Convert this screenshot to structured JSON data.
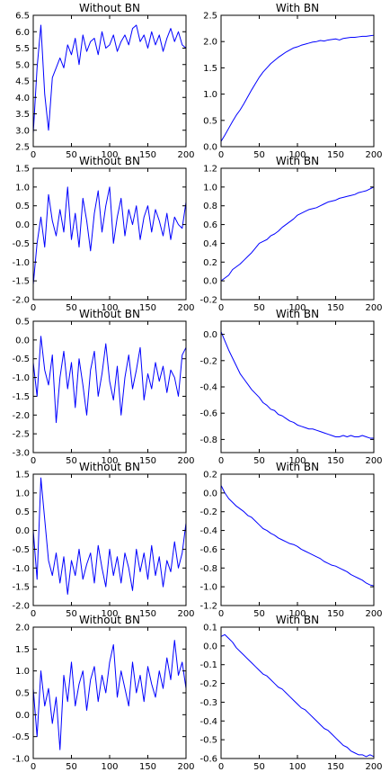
{
  "figure": {
    "title": ""
  },
  "chart_data": [
    {
      "type": "line",
      "title": "Without BN",
      "xlabel": "",
      "ylabel": "",
      "xlim": [
        0,
        200
      ],
      "ylim": [
        2.5,
        6.5
      ],
      "xticks": [
        "0",
        "50",
        "100",
        "150",
        "200"
      ],
      "yticks": [
        "2.5",
        "3.0",
        "3.5",
        "4.0",
        "4.5",
        "5.0",
        "5.5",
        "6.0",
        "6.5"
      ],
      "x": [
        0,
        5,
        10,
        15,
        20,
        25,
        30,
        35,
        40,
        45,
        50,
        55,
        60,
        65,
        70,
        75,
        80,
        85,
        90,
        95,
        100,
        105,
        110,
        115,
        120,
        125,
        130,
        135,
        140,
        145,
        150,
        155,
        160,
        165,
        170,
        175,
        180,
        185,
        190,
        195,
        200
      ],
      "series": [
        {
          "values": [
            2.9,
            4.9,
            6.2,
            4.1,
            3.0,
            4.6,
            4.9,
            5.2,
            4.9,
            5.6,
            5.3,
            5.8,
            5.0,
            5.9,
            5.4,
            5.7,
            5.8,
            5.3,
            6.0,
            5.5,
            5.6,
            5.9,
            5.4,
            5.7,
            5.9,
            5.6,
            6.1,
            6.2,
            5.7,
            5.9,
            5.5,
            6.0,
            5.6,
            5.9,
            5.4,
            5.8,
            6.1,
            5.7,
            6.0,
            5.6,
            5.5
          ]
        }
      ],
      "grid": false,
      "legend": false
    },
    {
      "type": "line",
      "title": "With BN",
      "xlabel": "",
      "ylabel": "",
      "xlim": [
        0,
        200
      ],
      "ylim": [
        0.0,
        2.5
      ],
      "xticks": [
        "0",
        "50",
        "100",
        "150",
        "200"
      ],
      "yticks": [
        "0.0",
        "0.5",
        "1.0",
        "1.5",
        "2.0",
        "2.5"
      ],
      "x": [
        0,
        5,
        10,
        15,
        20,
        25,
        30,
        35,
        40,
        45,
        50,
        55,
        60,
        65,
        70,
        75,
        80,
        85,
        90,
        95,
        100,
        105,
        110,
        115,
        120,
        125,
        130,
        135,
        140,
        145,
        150,
        155,
        160,
        165,
        170,
        175,
        180,
        185,
        190,
        195,
        200
      ],
      "series": [
        {
          "values": [
            0.1,
            0.22,
            0.35,
            0.48,
            0.6,
            0.7,
            0.82,
            0.95,
            1.08,
            1.2,
            1.32,
            1.42,
            1.5,
            1.58,
            1.64,
            1.7,
            1.75,
            1.8,
            1.84,
            1.88,
            1.9,
            1.93,
            1.95,
            1.97,
            1.99,
            2.0,
            2.02,
            2.01,
            2.03,
            2.04,
            2.05,
            2.03,
            2.06,
            2.07,
            2.08,
            2.08,
            2.09,
            2.1,
            2.1,
            2.11,
            2.12
          ]
        }
      ],
      "grid": false,
      "legend": false
    },
    {
      "type": "line",
      "title": "Without BN",
      "xlabel": "",
      "ylabel": "",
      "xlim": [
        0,
        200
      ],
      "ylim": [
        -2.0,
        1.5
      ],
      "xticks": [
        "0",
        "50",
        "100",
        "150",
        "200"
      ],
      "yticks": [
        "-2.0",
        "-1.5",
        "-1.0",
        "-0.5",
        "0.0",
        "0.5",
        "1.0",
        "1.5"
      ],
      "x": [
        0,
        5,
        10,
        15,
        20,
        25,
        30,
        35,
        40,
        45,
        50,
        55,
        60,
        65,
        70,
        75,
        80,
        85,
        90,
        95,
        100,
        105,
        110,
        115,
        120,
        125,
        130,
        135,
        140,
        145,
        150,
        155,
        160,
        165,
        170,
        175,
        180,
        185,
        190,
        195,
        200
      ],
      "series": [
        {
          "values": [
            -1.6,
            -0.5,
            0.2,
            -0.6,
            0.8,
            0.1,
            -0.3,
            0.4,
            -0.2,
            1.0,
            -0.4,
            0.3,
            -0.6,
            0.7,
            0.1,
            -0.7,
            0.3,
            0.9,
            -0.2,
            0.5,
            1.0,
            -0.5,
            0.2,
            0.7,
            -0.3,
            0.4,
            0.0,
            0.5,
            -0.4,
            0.2,
            0.5,
            -0.2,
            0.4,
            0.1,
            -0.3,
            0.3,
            -0.4,
            0.2,
            0.0,
            -0.1,
            0.6
          ]
        }
      ],
      "grid": false,
      "legend": false
    },
    {
      "type": "line",
      "title": "With BN",
      "xlabel": "",
      "ylabel": "",
      "xlim": [
        0,
        200
      ],
      "ylim": [
        -0.2,
        1.2
      ],
      "xticks": [
        "0",
        "50",
        "100",
        "150",
        "200"
      ],
      "yticks": [
        "-0.2",
        "0.0",
        "0.2",
        "0.4",
        "0.6",
        "0.8",
        "1.0",
        "1.2"
      ],
      "x": [
        0,
        5,
        10,
        15,
        20,
        25,
        30,
        35,
        40,
        45,
        50,
        55,
        60,
        65,
        70,
        75,
        80,
        85,
        90,
        95,
        100,
        105,
        110,
        115,
        120,
        125,
        130,
        135,
        140,
        145,
        150,
        155,
        160,
        165,
        170,
        175,
        180,
        185,
        190,
        195,
        200
      ],
      "series": [
        {
          "values": [
            0.0,
            0.03,
            0.06,
            0.12,
            0.15,
            0.18,
            0.22,
            0.26,
            0.3,
            0.35,
            0.4,
            0.42,
            0.44,
            0.48,
            0.5,
            0.53,
            0.57,
            0.6,
            0.63,
            0.66,
            0.7,
            0.72,
            0.74,
            0.76,
            0.77,
            0.78,
            0.8,
            0.82,
            0.84,
            0.85,
            0.86,
            0.88,
            0.89,
            0.9,
            0.91,
            0.92,
            0.94,
            0.95,
            0.96,
            0.98,
            1.0
          ]
        }
      ],
      "grid": false,
      "legend": false
    },
    {
      "type": "line",
      "title": "Without BN",
      "xlabel": "",
      "ylabel": "",
      "xlim": [
        0,
        200
      ],
      "ylim": [
        -3.0,
        0.5
      ],
      "xticks": [
        "0",
        "50",
        "100",
        "150",
        "200"
      ],
      "yticks": [
        "-3.0",
        "-2.5",
        "-2.0",
        "-1.5",
        "-1.0",
        "-0.5",
        "0.0",
        "0.5"
      ],
      "x": [
        0,
        5,
        10,
        15,
        20,
        25,
        30,
        35,
        40,
        45,
        50,
        55,
        60,
        65,
        70,
        75,
        80,
        85,
        90,
        95,
        100,
        105,
        110,
        115,
        120,
        125,
        130,
        135,
        140,
        145,
        150,
        155,
        160,
        165,
        170,
        175,
        180,
        185,
        190,
        195,
        200
      ],
      "series": [
        {
          "values": [
            -0.6,
            -1.5,
            0.1,
            -0.8,
            -1.2,
            -0.4,
            -2.2,
            -1.0,
            -0.3,
            -1.3,
            -0.6,
            -1.8,
            -0.5,
            -1.2,
            -2.0,
            -0.8,
            -0.3,
            -1.5,
            -0.9,
            -0.1,
            -1.1,
            -1.6,
            -0.7,
            -2.0,
            -1.0,
            -0.4,
            -1.3,
            -0.8,
            -0.2,
            -1.6,
            -0.9,
            -1.3,
            -0.6,
            -1.1,
            -0.7,
            -1.4,
            -0.8,
            -1.0,
            -1.5,
            -0.4,
            -0.2
          ]
        }
      ],
      "grid": false,
      "legend": false
    },
    {
      "type": "line",
      "title": "With BN",
      "xlabel": "",
      "ylabel": "",
      "xlim": [
        0,
        200
      ],
      "ylim": [
        -0.9,
        0.1
      ],
      "xticks": [
        "0",
        "50",
        "100",
        "150",
        "200"
      ],
      "yticks": [
        "-0.8",
        "-0.6",
        "-0.4",
        "-0.2",
        "0.0"
      ],
      "x": [
        0,
        5,
        10,
        15,
        20,
        25,
        30,
        35,
        40,
        45,
        50,
        55,
        60,
        65,
        70,
        75,
        80,
        85,
        90,
        95,
        100,
        105,
        110,
        115,
        120,
        125,
        130,
        135,
        140,
        145,
        150,
        155,
        160,
        165,
        170,
        175,
        180,
        185,
        190,
        195,
        200
      ],
      "series": [
        {
          "values": [
            0.02,
            -0.05,
            -0.12,
            -0.18,
            -0.24,
            -0.3,
            -0.34,
            -0.38,
            -0.42,
            -0.45,
            -0.48,
            -0.52,
            -0.54,
            -0.57,
            -0.58,
            -0.61,
            -0.62,
            -0.64,
            -0.66,
            -0.67,
            -0.69,
            -0.7,
            -0.71,
            -0.72,
            -0.72,
            -0.73,
            -0.74,
            -0.75,
            -0.76,
            -0.77,
            -0.78,
            -0.78,
            -0.77,
            -0.78,
            -0.77,
            -0.78,
            -0.78,
            -0.77,
            -0.78,
            -0.79,
            -0.79
          ]
        }
      ],
      "grid": false,
      "legend": false
    },
    {
      "type": "line",
      "title": "Without BN",
      "xlabel": "",
      "ylabel": "",
      "xlim": [
        0,
        200
      ],
      "ylim": [
        -2.0,
        1.5
      ],
      "xticks": [
        "0",
        "50",
        "100",
        "150",
        "200"
      ],
      "yticks": [
        "-2.0",
        "-1.5",
        "-1.0",
        "-0.5",
        "0.0",
        "0.5",
        "1.0",
        "1.5"
      ],
      "x": [
        0,
        5,
        10,
        15,
        20,
        25,
        30,
        35,
        40,
        45,
        50,
        55,
        60,
        65,
        70,
        75,
        80,
        85,
        90,
        95,
        100,
        105,
        110,
        115,
        120,
        125,
        130,
        135,
        140,
        145,
        150,
        155,
        160,
        165,
        170,
        175,
        180,
        185,
        190,
        195,
        200
      ],
      "series": [
        {
          "values": [
            0.0,
            -1.3,
            1.4,
            0.3,
            -0.8,
            -1.2,
            -0.6,
            -1.4,
            -0.7,
            -1.7,
            -0.8,
            -1.2,
            -0.5,
            -1.3,
            -0.9,
            -0.6,
            -1.4,
            -0.4,
            -1.0,
            -1.5,
            -0.5,
            -1.2,
            -0.7,
            -1.4,
            -0.6,
            -1.0,
            -1.6,
            -0.5,
            -1.1,
            -0.6,
            -1.3,
            -0.4,
            -1.2,
            -0.7,
            -1.5,
            -0.8,
            -1.1,
            -0.3,
            -1.0,
            -0.6,
            0.2
          ]
        }
      ],
      "grid": false,
      "legend": false
    },
    {
      "type": "line",
      "title": "With BN",
      "xlabel": "",
      "ylabel": "",
      "xlim": [
        0,
        200
      ],
      "ylim": [
        -1.2,
        0.2
      ],
      "xticks": [
        "0",
        "50",
        "100",
        "150",
        "200"
      ],
      "yticks": [
        "-1.2",
        "-1.0",
        "-0.8",
        "-0.6",
        "-0.4",
        "-0.2",
        "0.0",
        "0.2"
      ],
      "x": [
        0,
        5,
        10,
        15,
        20,
        25,
        30,
        35,
        40,
        45,
        50,
        55,
        60,
        65,
        70,
        75,
        80,
        85,
        90,
        95,
        100,
        105,
        110,
        115,
        120,
        125,
        130,
        135,
        140,
        145,
        150,
        155,
        160,
        165,
        170,
        175,
        180,
        185,
        190,
        195,
        200
      ],
      "series": [
        {
          "values": [
            0.08,
            0.0,
            -0.06,
            -0.1,
            -0.14,
            -0.17,
            -0.2,
            -0.24,
            -0.26,
            -0.3,
            -0.34,
            -0.38,
            -0.4,
            -0.43,
            -0.45,
            -0.48,
            -0.5,
            -0.52,
            -0.54,
            -0.55,
            -0.57,
            -0.6,
            -0.62,
            -0.64,
            -0.66,
            -0.68,
            -0.7,
            -0.73,
            -0.75,
            -0.77,
            -0.78,
            -0.8,
            -0.82,
            -0.84,
            -0.87,
            -0.89,
            -0.91,
            -0.93,
            -0.96,
            -0.98,
            -0.99
          ]
        }
      ],
      "grid": false,
      "legend": false
    },
    {
      "type": "line",
      "title": "Without BN",
      "xlabel": "",
      "ylabel": "",
      "xlim": [
        0,
        200
      ],
      "ylim": [
        -1.0,
        2.0
      ],
      "xticks": [
        "0",
        "50",
        "100",
        "150",
        "200"
      ],
      "yticks": [
        "-1.0",
        "-0.5",
        "0.0",
        "0.5",
        "1.0",
        "1.5",
        "2.0"
      ],
      "x": [
        0,
        5,
        10,
        15,
        20,
        25,
        30,
        35,
        40,
        45,
        50,
        55,
        60,
        65,
        70,
        75,
        80,
        85,
        90,
        95,
        100,
        105,
        110,
        115,
        120,
        125,
        130,
        135,
        140,
        145,
        150,
        155,
        160,
        165,
        170,
        175,
        180,
        185,
        190,
        195,
        200
      ],
      "series": [
        {
          "values": [
            0.6,
            -0.5,
            1.0,
            0.2,
            0.6,
            -0.2,
            0.4,
            -0.8,
            0.9,
            0.3,
            1.2,
            0.2,
            0.7,
            1.0,
            0.1,
            0.8,
            1.1,
            0.3,
            0.9,
            0.5,
            1.2,
            1.6,
            0.4,
            1.0,
            0.6,
            0.2,
            1.2,
            0.5,
            0.9,
            0.3,
            1.1,
            0.7,
            0.4,
            1.0,
            0.6,
            1.3,
            0.8,
            1.7,
            0.9,
            1.2,
            0.6
          ]
        }
      ],
      "grid": false,
      "legend": false
    },
    {
      "type": "line",
      "title": "With BN",
      "xlabel": "",
      "ylabel": "",
      "xlim": [
        0,
        200
      ],
      "ylim": [
        -0.6,
        0.1
      ],
      "xticks": [
        "0",
        "50",
        "100",
        "150",
        "200"
      ],
      "yticks": [
        "-0.6",
        "-0.5",
        "-0.4",
        "-0.3",
        "-0.2",
        "-0.1",
        "0.0",
        "0.1"
      ],
      "x": [
        0,
        5,
        10,
        15,
        20,
        25,
        30,
        35,
        40,
        45,
        50,
        55,
        60,
        65,
        70,
        75,
        80,
        85,
        90,
        95,
        100,
        105,
        110,
        115,
        120,
        125,
        130,
        135,
        140,
        145,
        150,
        155,
        160,
        165,
        170,
        175,
        180,
        185,
        190,
        195,
        200
      ],
      "series": [
        {
          "values": [
            0.05,
            0.06,
            0.04,
            0.02,
            -0.01,
            -0.03,
            -0.05,
            -0.07,
            -0.09,
            -0.11,
            -0.13,
            -0.15,
            -0.16,
            -0.18,
            -0.2,
            -0.22,
            -0.23,
            -0.25,
            -0.27,
            -0.29,
            -0.31,
            -0.33,
            -0.34,
            -0.36,
            -0.38,
            -0.4,
            -0.42,
            -0.44,
            -0.45,
            -0.47,
            -0.49,
            -0.51,
            -0.53,
            -0.54,
            -0.56,
            -0.57,
            -0.58,
            -0.58,
            -0.59,
            -0.58,
            -0.59
          ]
        }
      ],
      "grid": false,
      "legend": false
    }
  ]
}
